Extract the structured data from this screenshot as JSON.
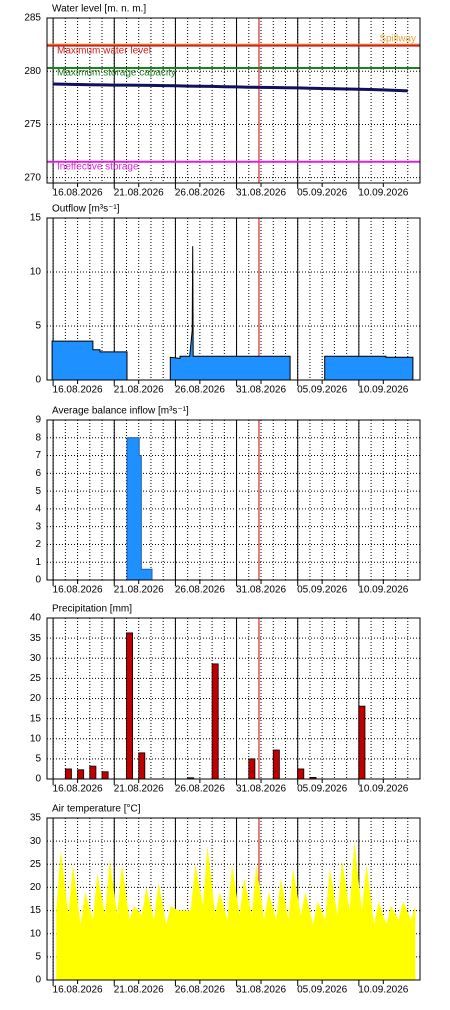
{
  "chart_data": [
    {
      "type": "line",
      "title": "Water level [m. n. m.]",
      "x": [
        "2026-08-14",
        "2026-08-15",
        "2026-08-16",
        "2026-08-17",
        "2026-08-18",
        "2026-08-19",
        "2026-08-20",
        "2026-08-21",
        "2026-08-22",
        "2026-08-23",
        "2026-08-24",
        "2026-08-25",
        "2026-08-26",
        "2026-08-27",
        "2026-08-28",
        "2026-08-29",
        "2026-08-30",
        "2026-08-31",
        "2026-09-01",
        "2026-09-02",
        "2026-09-03",
        "2026-09-04",
        "2026-09-05",
        "2026-09-06",
        "2026-09-07",
        "2026-09-08",
        "2026-09-09",
        "2026-09-10",
        "2026-09-11",
        "2026-09-12"
      ],
      "values": [
        278.8,
        278.78,
        278.75,
        278.73,
        278.72,
        278.7,
        278.7,
        278.68,
        278.67,
        278.65,
        278.63,
        278.6,
        278.58,
        278.57,
        278.55,
        278.53,
        278.5,
        278.48,
        278.47,
        278.45,
        278.43,
        278.4,
        278.38,
        278.35,
        278.33,
        278.3,
        278.28,
        278.25,
        278.2,
        278.15
      ],
      "color": "#10105e",
      "reference_lines": [
        {
          "name": "Spillway",
          "value": 282.5,
          "color": "#e8a33a",
          "label_position": "right"
        },
        {
          "name": "Maximum water level",
          "value": 282.4,
          "color": "#d42020",
          "label_position": "left"
        },
        {
          "name": "Maximum storage capacity",
          "value": 280.3,
          "color": "#208020",
          "label_position": "left"
        },
        {
          "name": "Ineffective storage",
          "value": 271.5,
          "color": "#e020e0",
          "label_position": "left"
        }
      ],
      "ylim": [
        269.5,
        285
      ],
      "yticks": [
        270,
        275,
        280,
        285
      ],
      "xlim": [
        "2026-08-13T12:00",
        "2026-09-13T00:00"
      ],
      "xticks": [
        {
          "value": "2026-08-16",
          "label": "16.08.2026"
        },
        {
          "value": "2026-08-21",
          "label": "21.08.2026"
        },
        {
          "value": "2026-08-26",
          "label": "26.08.2026"
        },
        {
          "value": "2026-08-31",
          "label": "31.08.2026"
        },
        {
          "value": "2026-09-05",
          "label": "05.09.2026"
        },
        {
          "value": "2026-09-10",
          "label": "10.09.2026"
        }
      ],
      "current_time": "2026-08-30T20:00",
      "current_time_color": "#d00000",
      "grid": true
    },
    {
      "type": "area",
      "title": "Outflow [m³s⁻¹]",
      "x": [
        "2026-08-13T22:00",
        "2026-08-17T06:00",
        "2026-08-17T06:00",
        "2026-08-17T20:00",
        "2026-08-17T20:00",
        "2026-08-20T01:00",
        "2026-08-20T01:00",
        "2026-08-23T14:00",
        "2026-08-23T14:00",
        "2026-08-24T09:00",
        "2026-08-24T09:00",
        "2026-08-25T04:00",
        "2026-08-25T09:00",
        "2026-08-25T10:00",
        "2026-08-25T11:00",
        "2026-09-02T09:00",
        "2026-09-02T09:00",
        "2026-09-05T05:00",
        "2026-09-05T05:00",
        "2026-09-10T05:00",
        "2026-09-10T05:00",
        "2026-09-12T10:00"
      ],
      "values": [
        3.6,
        3.6,
        2.8,
        2.8,
        2.6,
        2.6,
        0,
        0,
        2.1,
        2.0,
        2.2,
        2.2,
        4.6,
        12.4,
        2.2,
        2.2,
        0,
        0,
        2.2,
        2.2,
        2.1,
        2.1
      ],
      "color": "#1e90ff",
      "edge_color": "#000000",
      "ylim": [
        0,
        15
      ],
      "yticks": [
        0,
        5,
        10,
        15
      ],
      "xlim": [
        "2026-08-13T12:00",
        "2026-09-13T00:00"
      ],
      "xticks": [
        {
          "value": "2026-08-16",
          "label": "16.08.2026"
        },
        {
          "value": "2026-08-21",
          "label": "21.08.2026"
        },
        {
          "value": "2026-08-26",
          "label": "26.08.2026"
        },
        {
          "value": "2026-08-31",
          "label": "31.08.2026"
        },
        {
          "value": "2026-09-05",
          "label": "05.09.2026"
        },
        {
          "value": "2026-09-10",
          "label": "10.09.2026"
        }
      ],
      "current_time": "2026-08-30T20:00",
      "current_time_color": "#d00000",
      "grid": true
    },
    {
      "type": "area",
      "title": "Average balance inflow [m³s⁻¹]",
      "x": [
        "2026-08-13T22:00",
        "2026-08-20T01:00",
        "2026-08-20T01:00",
        "2026-08-21T01:00",
        "2026-08-21T01:00",
        "2026-08-21T05:00",
        "2026-08-21T05:00",
        "2026-08-22T02:00",
        "2026-08-22T02:00",
        "2026-09-12T10:00"
      ],
      "values": [
        0,
        0,
        8.0,
        8.0,
        7.0,
        7.0,
        0.6,
        0.6,
        0,
        0
      ],
      "color": "#1e90ff",
      "edge_color": "#1e5fb0",
      "ylim": [
        0,
        9
      ],
      "yticks": [
        0,
        1,
        2,
        3,
        4,
        5,
        6,
        7,
        8,
        9
      ],
      "xlim": [
        "2026-08-13T12:00",
        "2026-09-13T00:00"
      ],
      "xticks": [
        {
          "value": "2026-08-16",
          "label": "16.08.2026"
        },
        {
          "value": "2026-08-21",
          "label": "21.08.2026"
        },
        {
          "value": "2026-08-26",
          "label": "26.08.2026"
        },
        {
          "value": "2026-08-31",
          "label": "31.08.2026"
        },
        {
          "value": "2026-09-05",
          "label": "05.09.2026"
        },
        {
          "value": "2026-09-10",
          "label": "10.09.2026"
        }
      ],
      "current_time": "2026-08-30T20:00",
      "current_time_color": "#d00000",
      "grid": true
    },
    {
      "type": "bar",
      "title": "Precipitation [mm]",
      "x": [
        "2026-08-15",
        "2026-08-16",
        "2026-08-17",
        "2026-08-18",
        "2026-08-20",
        "2026-08-21",
        "2026-08-25",
        "2026-08-27",
        "2026-08-30",
        "2026-09-01",
        "2026-09-03",
        "2026-09-04",
        "2026-09-08"
      ],
      "values": [
        2.5,
        2.3,
        3.2,
        1.8,
        36.3,
        6.5,
        0.3,
        28.6,
        5,
        7.2,
        2.5,
        0.4,
        18.1
      ],
      "color": "#c00000",
      "edge_color": "#000000",
      "ylim": [
        0,
        40
      ],
      "yticks": [
        0,
        5,
        10,
        15,
        20,
        25,
        30,
        35,
        40
      ],
      "xlim": [
        "2026-08-13T12:00",
        "2026-09-13T00:00"
      ],
      "xticks": [
        {
          "value": "2026-08-16",
          "label": "16.08.2026"
        },
        {
          "value": "2026-08-21",
          "label": "21.08.2026"
        },
        {
          "value": "2026-08-26",
          "label": "26.08.2026"
        },
        {
          "value": "2026-08-31",
          "label": "31.08.2026"
        },
        {
          "value": "2026-09-05",
          "label": "05.09.2026"
        },
        {
          "value": "2026-09-10",
          "label": "10.09.2026"
        }
      ],
      "current_time": "2026-08-30T20:00",
      "current_time_color": "#d00000",
      "grid": true
    },
    {
      "type": "area",
      "title": "Air temperature [°C]",
      "x": [
        "2026-08-14T06:00",
        "2026-08-14T15:00",
        "2026-08-15T06:00",
        "2026-08-15T15:00",
        "2026-08-16T06:00",
        "2026-08-16T15:00",
        "2026-08-17T06:00",
        "2026-08-17T15:00",
        "2026-08-18T06:00",
        "2026-08-18T15:00",
        "2026-08-19T06:00",
        "2026-08-19T15:00",
        "2026-08-20T06:00",
        "2026-08-20T15:00",
        "2026-08-21T06:00",
        "2026-08-21T15:00",
        "2026-08-22T06:00",
        "2026-08-22T15:00",
        "2026-08-23T06:00",
        "2026-08-23T15:00",
        "2026-08-24T06:00",
        "2026-08-24T15:00",
        "2026-08-25T06:00",
        "2026-08-25T15:00",
        "2026-08-26T06:00",
        "2026-08-26T15:00",
        "2026-08-27T06:00",
        "2026-08-27T15:00",
        "2026-08-28T06:00",
        "2026-08-28T15:00",
        "2026-08-29T06:00",
        "2026-08-29T15:00",
        "2026-08-30T06:00",
        "2026-08-30T15:00",
        "2026-08-31T06:00",
        "2026-08-31T15:00",
        "2026-09-01T06:00",
        "2026-09-01T15:00",
        "2026-09-02T06:00",
        "2026-09-02T15:00",
        "2026-09-03T06:00",
        "2026-09-03T15:00",
        "2026-09-04T06:00",
        "2026-09-04T15:00",
        "2026-09-05T06:00",
        "2026-09-05T15:00",
        "2026-09-06T06:00",
        "2026-09-06T15:00",
        "2026-09-07T06:00",
        "2026-09-07T15:00",
        "2026-09-08T06:00",
        "2026-09-08T15:00",
        "2026-09-09T06:00",
        "2026-09-09T15:00",
        "2026-09-10T06:00",
        "2026-09-10T15:00",
        "2026-09-11T06:00",
        "2026-09-11T15:00",
        "2026-09-12T06:00",
        "2026-09-12T15:00"
      ],
      "values": [
        15,
        28,
        14,
        25,
        12,
        19,
        13,
        23,
        14,
        26,
        14,
        25,
        13,
        16,
        14,
        20,
        13,
        21,
        12,
        16,
        15,
        15,
        15,
        25,
        16,
        29,
        14,
        19,
        13,
        25,
        14,
        22,
        14,
        25,
        13,
        19,
        13,
        22,
        13,
        24,
        14,
        19,
        12,
        17,
        13,
        24,
        14,
        26,
        15,
        30,
        15,
        25,
        12,
        17,
        12,
        16,
        13,
        17,
        13,
        16
      ],
      "color": "#ffff00",
      "ylim": [
        0,
        35
      ],
      "yticks": [
        0,
        5,
        10,
        15,
        20,
        25,
        30,
        35
      ],
      "xlim": [
        "2026-08-13T12:00",
        "2026-09-13T00:00"
      ],
      "xticks": [
        {
          "value": "2026-08-16",
          "label": "16.08.2026"
        },
        {
          "value": "2026-08-21",
          "label": "21.08.2026"
        },
        {
          "value": "2026-08-26",
          "label": "26.08.2026"
        },
        {
          "value": "2026-08-31",
          "label": "31.08.2026"
        },
        {
          "value": "2026-09-05",
          "label": "05.09.2026"
        },
        {
          "value": "2026-09-10",
          "label": "10.09.2026"
        }
      ],
      "current_time": "2026-08-30T20:00",
      "current_time_color": "#d00000",
      "grid": true
    }
  ]
}
